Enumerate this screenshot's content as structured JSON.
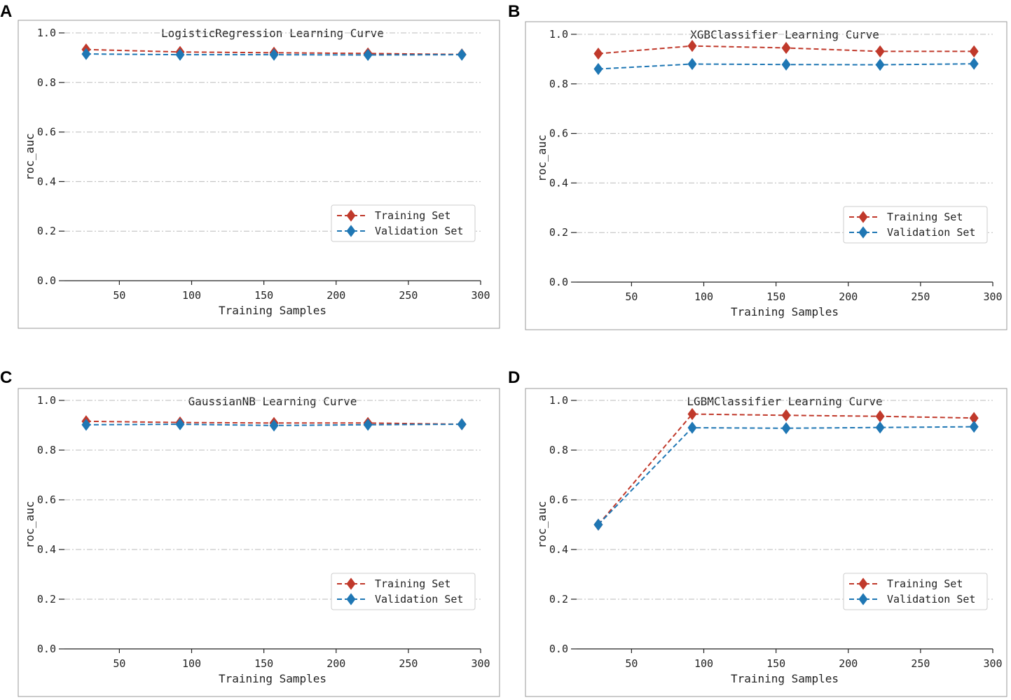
{
  "colors": {
    "training": "#c0392b",
    "validation": "#1f77b4",
    "grid": "#bbbbbb",
    "frame": "#999999"
  },
  "chart_data": [
    {
      "panel": "A",
      "type": "line",
      "title": "LogisticRegression Learning Curve",
      "xlabel": "Training Samples",
      "ylabel": "roc_auc",
      "xlim": [
        12,
        300
      ],
      "ylim": [
        0.0,
        1.0
      ],
      "xticks": [
        50,
        100,
        150,
        200,
        250,
        300
      ],
      "yticks": [
        0.0,
        0.2,
        0.4,
        0.6,
        0.8,
        1.0
      ],
      "ytick_labels": [
        "0.0",
        "0.2",
        "0.4",
        "0.6",
        "0.8",
        "1.0"
      ],
      "grid": "horizontal",
      "legend": "lower-right",
      "x": [
        27,
        92,
        157,
        222,
        287
      ],
      "series": [
        {
          "name": "Training Set",
          "values": [
            0.933,
            0.923,
            0.92,
            0.917,
            0.913
          ]
        },
        {
          "name": "Validation Set",
          "values": [
            0.915,
            0.912,
            0.912,
            0.911,
            0.912
          ]
        }
      ]
    },
    {
      "panel": "B",
      "type": "line",
      "title": "XGBClassifier Learning Curve",
      "xlabel": "Training Samples",
      "ylabel": "roc_auc",
      "xlim": [
        12,
        300
      ],
      "ylim": [
        0.0,
        1.0
      ],
      "xticks": [
        50,
        100,
        150,
        200,
        250,
        300
      ],
      "yticks": [
        0.0,
        0.2,
        0.4,
        0.6,
        0.8,
        1.0
      ],
      "ytick_labels": [
        "0.0",
        "0.2",
        "0.4",
        "0.6",
        "0.8",
        "1.0"
      ],
      "grid": "horizontal",
      "legend": "lower-right",
      "x": [
        27,
        92,
        157,
        222,
        287
      ],
      "series": [
        {
          "name": "Training Set",
          "values": [
            0.922,
            0.953,
            0.945,
            0.931,
            0.931
          ]
        },
        {
          "name": "Validation Set",
          "values": [
            0.86,
            0.88,
            0.878,
            0.877,
            0.881
          ]
        }
      ]
    },
    {
      "panel": "C",
      "type": "line",
      "title": "GaussianNB Learning Curve",
      "xlabel": "Training Samples",
      "ylabel": "roc_auc",
      "xlim": [
        12,
        300
      ],
      "ylim": [
        0.0,
        1.0
      ],
      "xticks": [
        50,
        100,
        150,
        200,
        250,
        300
      ],
      "yticks": [
        0.0,
        0.2,
        0.4,
        0.6,
        0.8,
        1.0
      ],
      "ytick_labels": [
        "0.0",
        "0.2",
        "0.4",
        "0.6",
        "0.8",
        "1.0"
      ],
      "grid": "horizontal",
      "legend": "lower-right",
      "x": [
        27,
        92,
        157,
        222,
        287
      ],
      "series": [
        {
          "name": "Training Set",
          "values": [
            0.916,
            0.911,
            0.909,
            0.909,
            0.904
          ]
        },
        {
          "name": "Validation Set",
          "values": [
            0.902,
            0.904,
            0.899,
            0.902,
            0.904
          ]
        }
      ]
    },
    {
      "panel": "D",
      "type": "line",
      "title": "LGBMClassifier Learning Curve",
      "xlabel": "Training Samples",
      "ylabel": "roc_auc",
      "xlim": [
        12,
        300
      ],
      "ylim": [
        0.0,
        1.0
      ],
      "xticks": [
        50,
        100,
        150,
        200,
        250,
        300
      ],
      "yticks": [
        0.0,
        0.2,
        0.4,
        0.6,
        0.8,
        1.0
      ],
      "ytick_labels": [
        "0.0",
        "0.2",
        "0.4",
        "0.6",
        "0.8",
        "1.0"
      ],
      "grid": "horizontal",
      "legend": "lower-right",
      "x": [
        27,
        92,
        157,
        222,
        287
      ],
      "series": [
        {
          "name": "Training Set",
          "values": [
            0.5,
            0.945,
            0.94,
            0.936,
            0.929
          ]
        },
        {
          "name": "Validation Set",
          "values": [
            0.5,
            0.89,
            0.888,
            0.891,
            0.894
          ]
        }
      ]
    }
  ]
}
